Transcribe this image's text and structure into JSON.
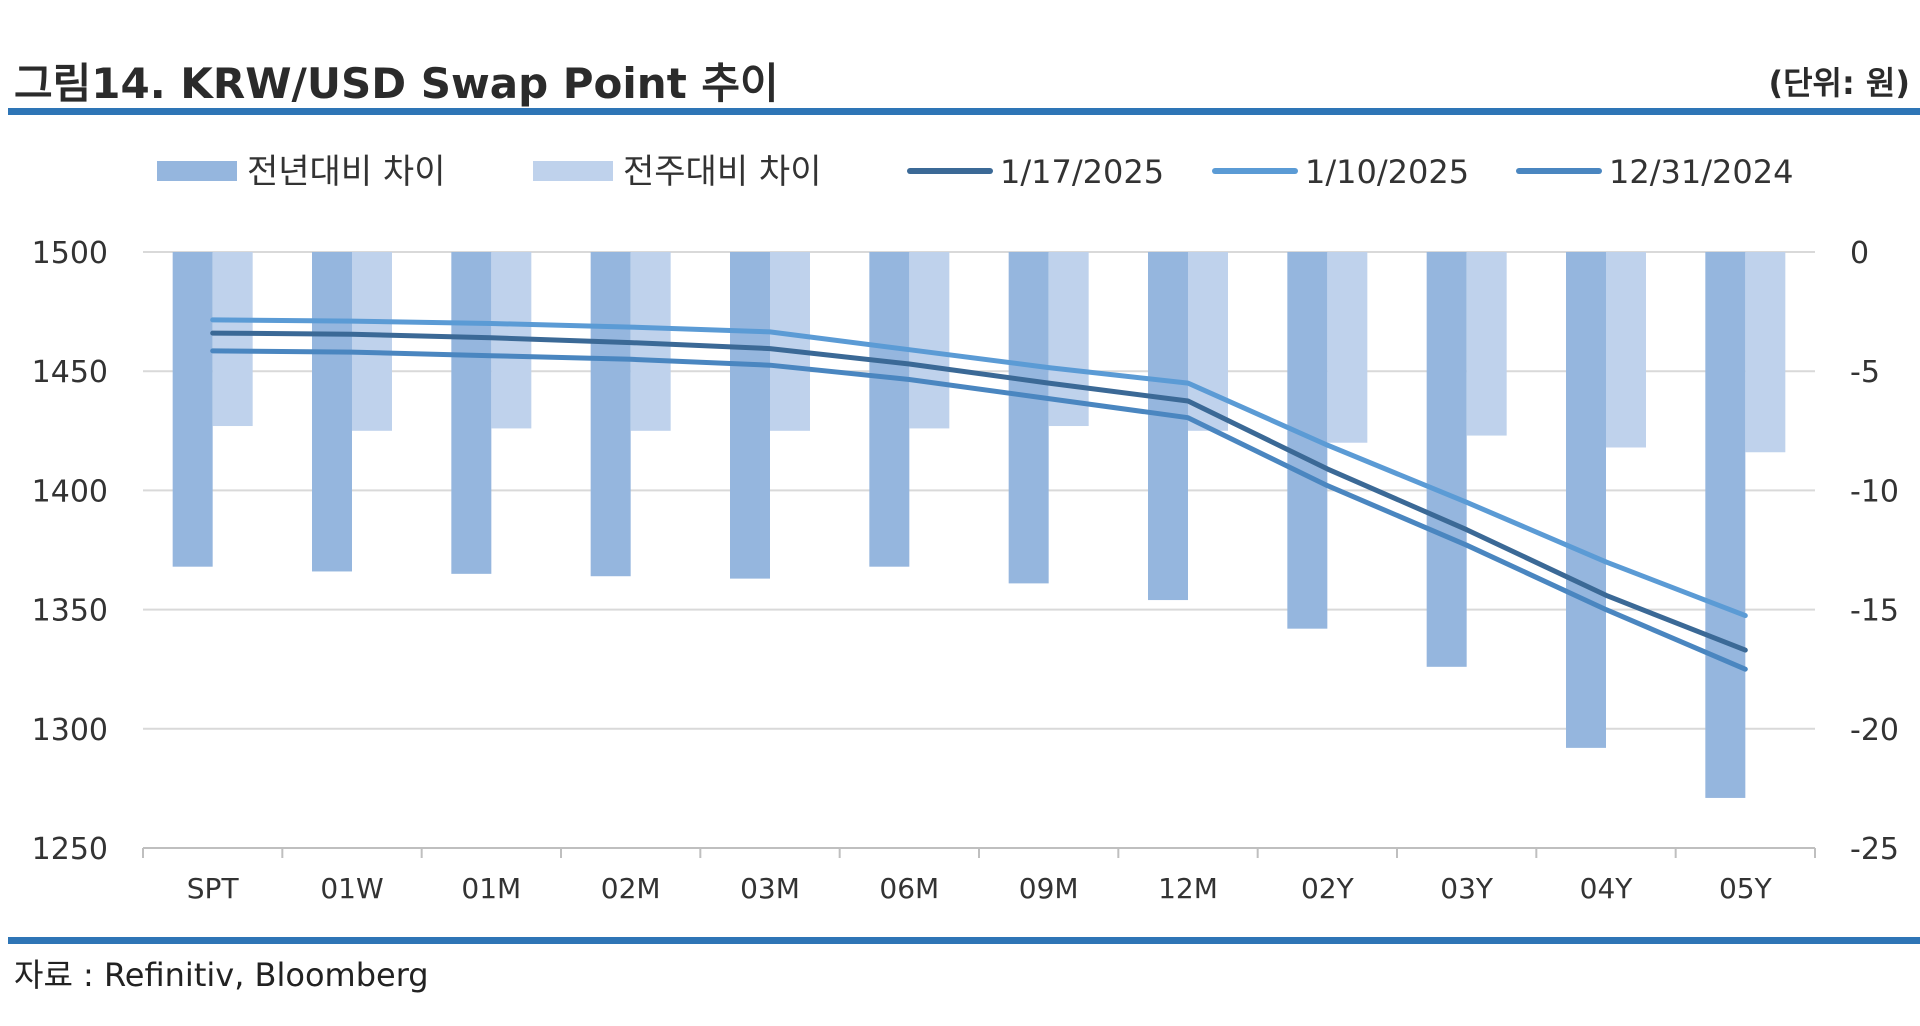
{
  "header": {
    "title": "그림14. KRW/USD Swap Point 추이",
    "unit": "(단위: 원)"
  },
  "footer": {
    "source": "자료 : Refinitiv, Bloomberg"
  },
  "colors": {
    "accent": "#2e75b6",
    "grid": "#d9d9d9",
    "axis": "#bfbfbf"
  },
  "chart_data": {
    "type": "bar",
    "categories": [
      "SPT",
      "01W",
      "01M",
      "02M",
      "03M",
      "06M",
      "09M",
      "12M",
      "02Y",
      "03Y",
      "04Y",
      "05Y"
    ],
    "y_left": {
      "ticks": [
        1500,
        1450,
        1400,
        1350,
        1300,
        1250
      ],
      "range": [
        1250,
        1500
      ]
    },
    "y_right": {
      "ticks": [
        0,
        -5,
        -10,
        -15,
        -20,
        -25
      ],
      "range": [
        -25,
        0
      ]
    },
    "grid": true,
    "legend_position": "top",
    "bar_series": [
      {
        "name": "전년대비 차이",
        "axis": "right",
        "color": "#95b6de",
        "values": [
          -13.2,
          -13.4,
          -13.5,
          -13.6,
          -13.7,
          -13.2,
          -13.9,
          -14.6,
          -15.8,
          -17.4,
          -20.8,
          -22.9
        ]
      },
      {
        "name": "전주대비 차이",
        "axis": "right",
        "color": "#bfd2ec",
        "values": [
          -7.3,
          -7.5,
          -7.4,
          -7.5,
          -7.5,
          -7.4,
          -7.3,
          -7.5,
          -8.0,
          -7.7,
          -8.2,
          -8.4
        ]
      }
    ],
    "line_series": [
      {
        "name": "1/17/2025",
        "axis": "left",
        "color": "#3b6996",
        "values": [
          1466,
          1465.5,
          1464,
          1462,
          1459.5,
          1453,
          1445,
          1437.5,
          1409,
          1383.5,
          1356,
          1333
        ]
      },
      {
        "name": "1/10/2025",
        "axis": "left",
        "color": "#5b9bd5",
        "values": [
          1471.5,
          1471,
          1470,
          1468.5,
          1466.5,
          1459,
          1451.5,
          1445,
          1419,
          1395,
          1370,
          1347.5
        ]
      },
      {
        "name": "12/31/2024",
        "axis": "left",
        "color": "#4a86c0",
        "values": [
          1458.5,
          1458,
          1456.5,
          1455,
          1452.5,
          1446.5,
          1438.5,
          1430.5,
          1402,
          1377,
          1350,
          1325
        ]
      }
    ]
  }
}
